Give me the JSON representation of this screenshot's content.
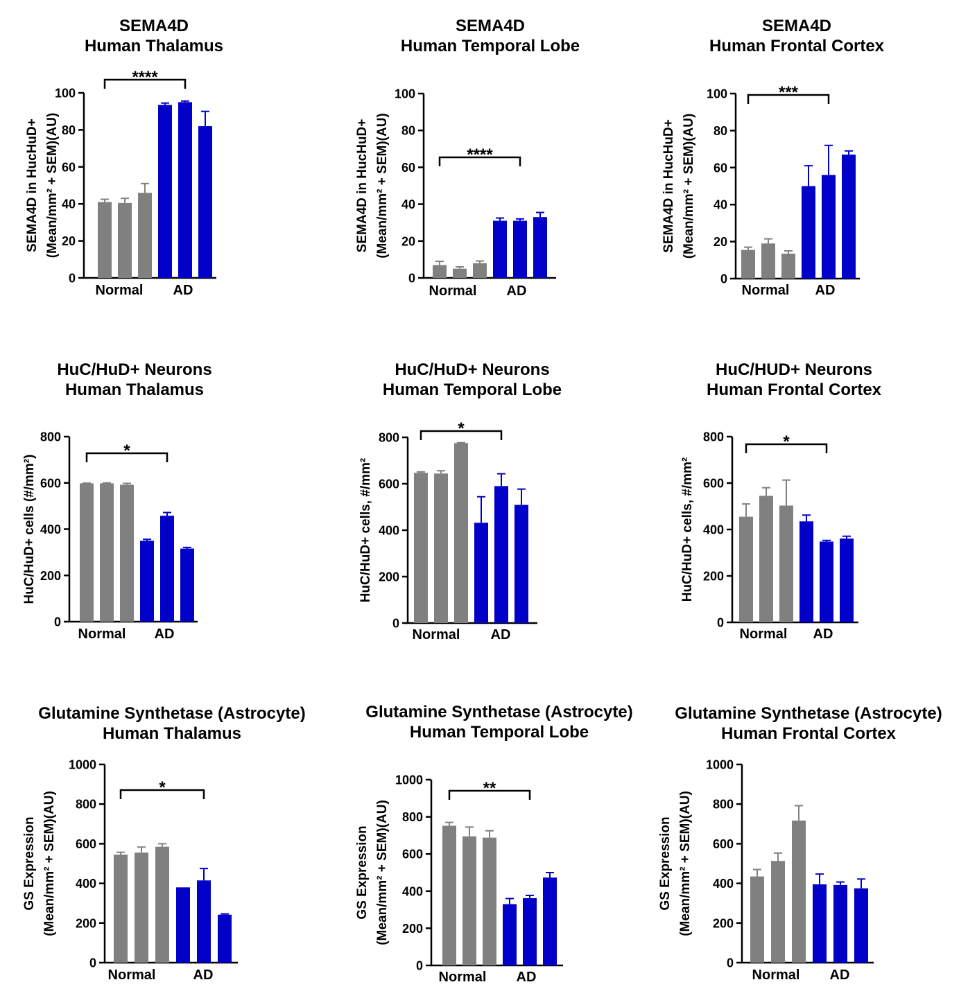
{
  "colors": {
    "normal": "#808080",
    "ad": "#0000C8",
    "axis": "#000000"
  },
  "chart_data": [
    {
      "type": "bar",
      "title": [
        "SEMA4D",
        "Human Thalamus"
      ],
      "ylabel": [
        "SEMA4D in HucHuD+",
        "(Mean/mm² + SEM)(AU)"
      ],
      "ylim": [
        0,
        100
      ],
      "yticks": [
        "0",
        "20",
        "40",
        "60",
        "80",
        "100"
      ],
      "groups": [
        "Normal",
        "AD"
      ],
      "series": [
        {
          "group": "Normal",
          "values": [
            41,
            40.5,
            46
          ],
          "errors": [
            1.5,
            2.5,
            5
          ]
        },
        {
          "group": "AD",
          "values": [
            93.5,
            95,
            82
          ],
          "errors": [
            1,
            0.6,
            8
          ]
        }
      ],
      "significance": "****"
    },
    {
      "type": "bar",
      "title": [
        "SEMA4D",
        "Human Temporal Lobe"
      ],
      "ylabel": [
        "SEMA4D in HucHuD+",
        "(Mean/mm² + SEM)(AU)"
      ],
      "ylim": [
        0,
        100
      ],
      "yticks": [
        "0",
        "20",
        "40",
        "60",
        "80",
        "100"
      ],
      "groups": [
        "Normal",
        "AD"
      ],
      "series": [
        {
          "group": "Normal",
          "values": [
            7,
            5,
            8
          ],
          "errors": [
            2,
            1,
            1.2
          ]
        },
        {
          "group": "AD",
          "values": [
            31,
            31,
            33
          ],
          "errors": [
            1.5,
            1,
            2.5
          ]
        }
      ],
      "significance": "****"
    },
    {
      "type": "bar",
      "title": [
        "SEMA4D",
        "Human Frontal Cortex"
      ],
      "ylabel": [
        "SEMA4D in HucHuD+",
        "(Mean/mm² + SEM)(AU)"
      ],
      "ylim": [
        0,
        100
      ],
      "yticks": [
        "0",
        "20",
        "40",
        "60",
        "80",
        "100"
      ],
      "groups": [
        "Normal",
        "AD"
      ],
      "series": [
        {
          "group": "Normal",
          "values": [
            15.5,
            19,
            13.5
          ],
          "errors": [
            1.5,
            2.5,
            1.5
          ]
        },
        {
          "group": "AD",
          "values": [
            50,
            56,
            67
          ],
          "errors": [
            11,
            16,
            2
          ]
        }
      ],
      "significance": "***"
    },
    {
      "type": "bar",
      "title": [
        "HuC/HuD+ Neurons",
        "Human Thalamus"
      ],
      "ylabel": [
        "HuC/HuD+ cells (#/mm²)"
      ],
      "ylim": [
        0,
        800
      ],
      "yticks": [
        "0",
        "200",
        "400",
        "600",
        "800"
      ],
      "groups": [
        "Normal",
        "AD"
      ],
      "series": [
        {
          "group": "Normal",
          "values": [
            598,
            598,
            592
          ],
          "errors": [
            1,
            2,
            6
          ]
        },
        {
          "group": "AD",
          "values": [
            350,
            458,
            316
          ],
          "errors": [
            6,
            14,
            5
          ]
        }
      ],
      "significance": "*"
    },
    {
      "type": "bar",
      "title": [
        "HuC/HuD+ Neurons",
        "Human Temporal Lobe"
      ],
      "ylabel": [
        "HuC/HuD+ cells, #/mm²"
      ],
      "ylim": [
        0,
        800
      ],
      "yticks": [
        "0",
        "200",
        "400",
        "600",
        "800"
      ],
      "groups": [
        "Normal",
        "AD"
      ],
      "series": [
        {
          "group": "Normal",
          "values": [
            647,
            644,
            775
          ],
          "errors": [
            4,
            12,
            2
          ]
        },
        {
          "group": "AD",
          "values": [
            432,
            590,
            509
          ],
          "errors": [
            112,
            53,
            68
          ]
        }
      ],
      "significance": "*"
    },
    {
      "type": "bar",
      "title": [
        "HuC/HUD+ Neurons",
        "Human Frontal Cortex"
      ],
      "ylabel": [
        "HuC/HuD+ cells, #/mm²"
      ],
      "ylim": [
        0,
        800
      ],
      "yticks": [
        "0",
        "200",
        "400",
        "600",
        "800"
      ],
      "groups": [
        "Normal",
        "AD"
      ],
      "series": [
        {
          "group": "Normal",
          "values": [
            455,
            545,
            503
          ],
          "errors": [
            55,
            35,
            110
          ]
        },
        {
          "group": "AD",
          "values": [
            435,
            348,
            361
          ],
          "errors": [
            27,
            5,
            10
          ]
        }
      ],
      "significance": "*"
    },
    {
      "type": "bar",
      "title": [
        "Glutamine Synthetase (Astrocyte)",
        "Human Thalamus"
      ],
      "ylabel": [
        "GS Expression",
        "(Mean/mm² + SEM)(AU)"
      ],
      "ylim": [
        0,
        1000
      ],
      "yticks": [
        "0",
        "200",
        "400",
        "600",
        "800",
        "1000"
      ],
      "groups": [
        "Normal",
        "AD"
      ],
      "series": [
        {
          "group": "Normal",
          "values": [
            545,
            555,
            585
          ],
          "errors": [
            12,
            28,
            15
          ]
        },
        {
          "group": "AD",
          "values": [
            380,
            415,
            242
          ],
          "errors": [
            0,
            60,
            4
          ]
        }
      ],
      "significance": "*"
    },
    {
      "type": "bar",
      "title": [
        "Glutamine Synthetase (Astrocyte)",
        "Human Temporal Lobe"
      ],
      "ylabel": [
        "GS Expression",
        "(Mean/mm² + SEM)(AU)"
      ],
      "ylim": [
        0,
        1000
      ],
      "yticks": [
        "0",
        "200",
        "400",
        "600",
        "800",
        "1000"
      ],
      "groups": [
        "Normal",
        "AD"
      ],
      "series": [
        {
          "group": "Normal",
          "values": [
            752,
            695,
            688
          ],
          "errors": [
            18,
            50,
            37
          ]
        },
        {
          "group": "AD",
          "values": [
            330,
            362,
            473
          ],
          "errors": [
            30,
            15,
            27
          ]
        }
      ],
      "significance": "**"
    },
    {
      "type": "bar",
      "title": [
        "Glutamine Synthetase (Astrocyte)",
        "Human Frontal Cortex"
      ],
      "ylabel": [
        "GS Expression",
        "(Mean/mm² + SEM)(AU)"
      ],
      "ylim": [
        0,
        1000
      ],
      "yticks": [
        "0",
        "200",
        "400",
        "600",
        "800",
        "1000"
      ],
      "groups": [
        "Normal",
        "AD"
      ],
      "series": [
        {
          "group": "Normal",
          "values": [
            435,
            513,
            717
          ],
          "errors": [
            35,
            40,
            75
          ]
        },
        {
          "group": "AD",
          "values": [
            395,
            392,
            375
          ],
          "errors": [
            52,
            15,
            47
          ]
        }
      ],
      "significance": ""
    }
  ]
}
